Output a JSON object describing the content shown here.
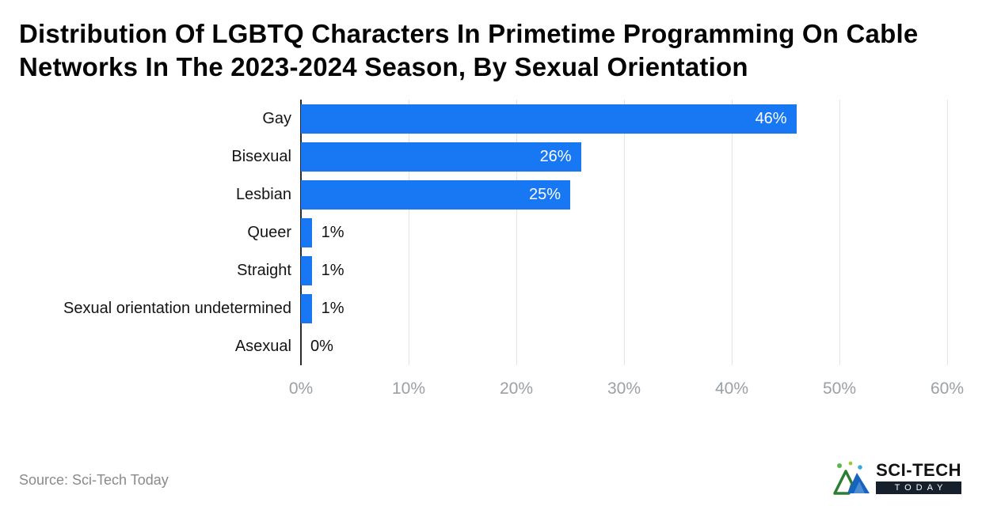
{
  "title": "Distribution Of LGBTQ Characters In Primetime Programming On Cable Networks In The 2023-2024 Season, By Sexual Orientation",
  "source": "Source: Sci-Tech Today",
  "logo": {
    "primary": "SCI-TECH",
    "secondary": "TODAY"
  },
  "chart_data": {
    "type": "bar",
    "orientation": "horizontal",
    "title": "Distribution Of LGBTQ Characters In Primetime Programming On Cable Networks In The 2023-2024 Season, By Sexual Orientation",
    "categories": [
      "Gay",
      "Bisexual",
      "Lesbian",
      "Queer",
      "Straight",
      "Sexual orientation undetermined",
      "Asexual"
    ],
    "values": [
      46,
      26,
      25,
      1,
      1,
      1,
      0
    ],
    "value_labels": [
      "46%",
      "26%",
      "25%",
      "1%",
      "1%",
      "1%",
      "0%"
    ],
    "xlim": [
      0,
      60
    ],
    "x_ticks": [
      "0%",
      "10%",
      "20%",
      "30%",
      "40%",
      "50%",
      "60%"
    ],
    "bar_color": "#1877F2",
    "grid": true,
    "legend": false,
    "inside_label_threshold": 10
  }
}
